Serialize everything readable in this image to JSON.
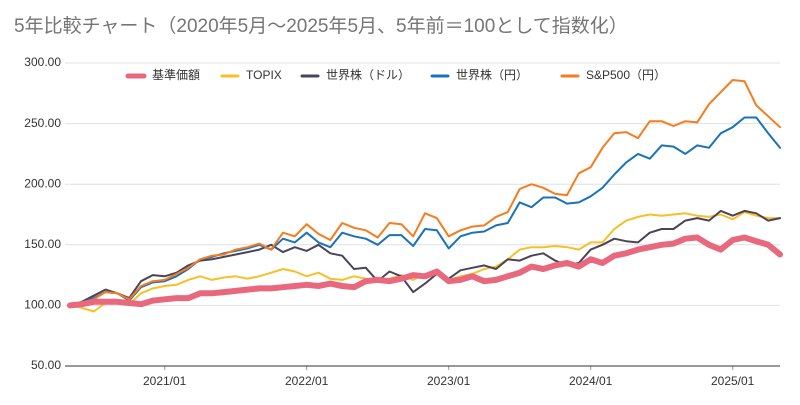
{
  "chart_data": {
    "type": "line",
    "title": "5年比較チャート（2020年5月〜2025年5月、5年前＝100として指数化）",
    "x": [
      "2020/05",
      "2020/06",
      "2020/07",
      "2020/08",
      "2020/09",
      "2020/10",
      "2020/11",
      "2020/12",
      "2021/01",
      "2021/02",
      "2021/03",
      "2021/04",
      "2021/05",
      "2021/06",
      "2021/07",
      "2021/08",
      "2021/09",
      "2021/10",
      "2021/11",
      "2021/12",
      "2022/01",
      "2022/02",
      "2022/03",
      "2022/04",
      "2022/05",
      "2022/06",
      "2022/07",
      "2022/08",
      "2022/09",
      "2022/10",
      "2022/11",
      "2022/12",
      "2023/01",
      "2023/02",
      "2023/03",
      "2023/04",
      "2023/05",
      "2023/06",
      "2023/07",
      "2023/08",
      "2023/09",
      "2023/10",
      "2023/11",
      "2023/12",
      "2024/01",
      "2024/02",
      "2024/03",
      "2024/04",
      "2024/05",
      "2024/06",
      "2024/07",
      "2024/08",
      "2024/09",
      "2024/10",
      "2024/11",
      "2024/12",
      "2025/01",
      "2025/02",
      "2025/03",
      "2025/04",
      "2025/05"
    ],
    "xticks": [
      "2021/01",
      "2022/01",
      "2023/01",
      "2024/01",
      "2025/01"
    ],
    "ylim": [
      50,
      300
    ],
    "yticks": [
      {
        "value": 50,
        "label": "50.00"
      },
      {
        "value": 100,
        "label": "100.00"
      },
      {
        "value": 150,
        "label": "150.00"
      },
      {
        "value": 200,
        "label": "200.00"
      },
      {
        "value": 250,
        "label": "250.00"
      },
      {
        "value": 300,
        "label": "300.00"
      }
    ],
    "grid": true,
    "legend": "top",
    "series": [
      {
        "name": "TOPIX",
        "color": "#f6c026",
        "values": [
          100,
          98,
          95,
          102,
          104,
          101,
          110,
          114,
          116,
          117,
          121,
          124,
          121,
          123,
          124,
          122,
          124,
          127,
          130,
          128,
          124,
          127,
          122,
          121,
          124,
          122,
          120,
          122,
          125,
          121,
          126,
          127,
          121,
          124,
          126,
          130,
          132,
          138,
          146,
          148,
          148,
          149,
          148,
          146,
          152,
          152,
          163,
          170,
          173,
          175,
          174,
          175,
          176,
          174,
          173,
          175,
          171,
          177,
          174,
          172,
          172
        ]
      },
      {
        "name": "世界株（ドル）",
        "color": "#4a4458",
        "values": [
          100,
          103,
          108,
          113,
          110,
          106,
          120,
          125,
          124,
          127,
          133,
          137,
          138,
          140,
          142,
          144,
          146,
          150,
          144,
          148,
          145,
          150,
          143,
          141,
          130,
          131,
          120,
          128,
          124,
          111,
          118,
          126,
          122,
          129,
          131,
          133,
          130,
          138,
          137,
          141,
          143,
          137,
          133,
          135,
          146,
          150,
          155,
          153,
          152,
          160,
          163,
          163,
          170,
          172,
          170,
          178,
          174,
          178,
          176,
          170,
          172
        ]
      },
      {
        "name": "世界株（円）",
        "color": "#1a73b8",
        "values": [
          100,
          102,
          106,
          111,
          110,
          104,
          115,
          119,
          120,
          124,
          130,
          138,
          140,
          143,
          145,
          147,
          150,
          146,
          155,
          152,
          160,
          152,
          148,
          160,
          157,
          155,
          150,
          158,
          158,
          149,
          163,
          162,
          147,
          157,
          160,
          161,
          166,
          168,
          185,
          181,
          189,
          189,
          184,
          185,
          190,
          197,
          208,
          218,
          225,
          221,
          232,
          231,
          225,
          232,
          230,
          242,
          247,
          255,
          255,
          242,
          230
        ]
      },
      {
        "name": "S&P500（円）",
        "color": "#f57c1f",
        "values": [
          100,
          102,
          105,
          111,
          110,
          105,
          116,
          120,
          121,
          126,
          131,
          138,
          141,
          142,
          146,
          148,
          151,
          146,
          160,
          157,
          167,
          159,
          154,
          168,
          164,
          162,
          156,
          168,
          167,
          157,
          176,
          172,
          157,
          162,
          165,
          166,
          173,
          177,
          196,
          200,
          197,
          192,
          191,
          209,
          214,
          230,
          242,
          243,
          238,
          252,
          252,
          248,
          252,
          251,
          266,
          276,
          286,
          285,
          265,
          256,
          247
        ]
      },
      {
        "name": "基準価額",
        "color": "#e8697d",
        "values": [
          100,
          101,
          103,
          103,
          103,
          102,
          101,
          104,
          105,
          106,
          106,
          110,
          110,
          111,
          112,
          113,
          114,
          114,
          115,
          116,
          117,
          116,
          118,
          116,
          115,
          120,
          121,
          120,
          122,
          125,
          124,
          128,
          120,
          121,
          124,
          120,
          121,
          124,
          127,
          132,
          130,
          133,
          135,
          132,
          138,
          135,
          141,
          143,
          146,
          148,
          150,
          151,
          155,
          156,
          150,
          146,
          154,
          156,
          153,
          150,
          142
        ]
      }
    ]
  }
}
